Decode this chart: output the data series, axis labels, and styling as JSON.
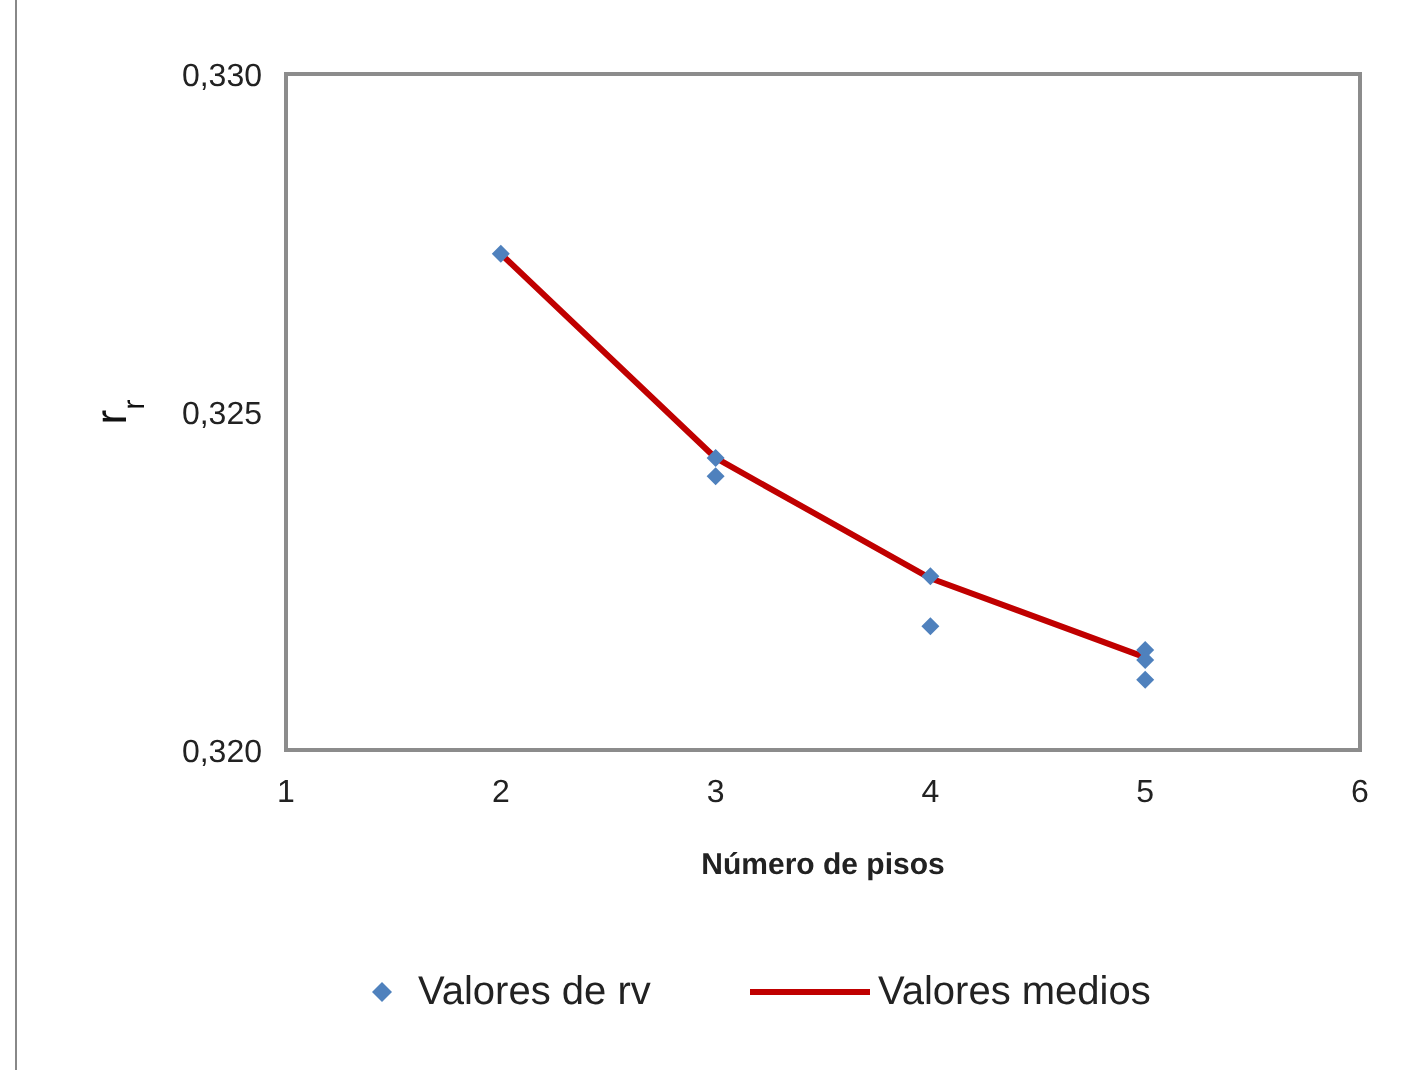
{
  "chart_data": {
    "type": "scatter",
    "xlabel": "Número de pisos",
    "ylabel": "r$_{r}$",
    "xlim": [
      1,
      6
    ],
    "xticks": [
      1,
      2,
      3,
      4,
      5,
      6
    ],
    "ylim": [
      0.32,
      0.33
    ],
    "yticks": [
      {
        "value": 0.32,
        "label": "0,320"
      },
      {
        "value": 0.325,
        "label": "0,325"
      },
      {
        "value": 0.33,
        "label": "0,330"
      }
    ],
    "grid": false,
    "legend": "bottom",
    "series": [
      {
        "name": "Valores de rv",
        "color": "#4f81bd",
        "marker": "diamond",
        "x": [
          2,
          3,
          3,
          4,
          4,
          5,
          5,
          5
        ],
        "values": [
          0.32734,
          0.32432,
          0.32405,
          0.32257,
          0.32183,
          0.32148,
          0.32133,
          0.32104
        ]
      },
      {
        "name": "Valores medios",
        "type": "line",
        "color": "#c00000",
        "marker": "none",
        "x": [
          2,
          3,
          4,
          5
        ],
        "values": [
          0.32734,
          0.32432,
          0.32254,
          0.32137
        ]
      }
    ]
  }
}
